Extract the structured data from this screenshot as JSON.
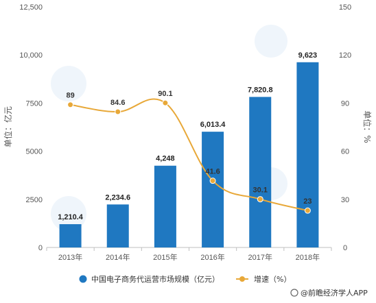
{
  "chart_data": {
    "type": "bar",
    "categories": [
      "2013年",
      "2014年",
      "2015年",
      "2016年",
      "2017年",
      "2018年"
    ],
    "series": [
      {
        "name": "中国电子商务代运营市场规模（亿元）",
        "type": "bar",
        "axis": "left",
        "values": [
          1210.4,
          2234.6,
          4248,
          6013.4,
          7820.8,
          9623
        ],
        "labels": [
          "1,210.4",
          "2,234.6",
          "4,248",
          "6,013.4",
          "7,820.8",
          "9,623"
        ],
        "color": "#1F78C1"
      },
      {
        "name": "增速（%）",
        "type": "line",
        "axis": "right",
        "values": [
          89,
          84.6,
          90.1,
          41.6,
          30.1,
          23
        ],
        "labels": [
          "89",
          "84.6",
          "90.1",
          "41.6",
          "30.1",
          "23"
        ],
        "color": "#E8A838"
      }
    ],
    "y_left": {
      "label": "单位：亿元",
      "min": 0,
      "max": 12500,
      "ticks": [
        0,
        2500,
        5000,
        7500,
        10000,
        12500
      ],
      "tick_labels": [
        "0",
        "2500",
        "5000",
        "7500",
        "10,000",
        "12,500"
      ]
    },
    "y_right": {
      "label": "单位：%",
      "min": 0,
      "max": 150,
      "ticks": [
        0,
        30,
        60,
        90,
        120,
        150
      ],
      "tick_labels": [
        "0",
        "30",
        "60",
        "90",
        "120",
        "150"
      ]
    },
    "grid": false,
    "legend_position": "bottom"
  },
  "footer": {
    "source": "@前瞻经济学人APP"
  }
}
